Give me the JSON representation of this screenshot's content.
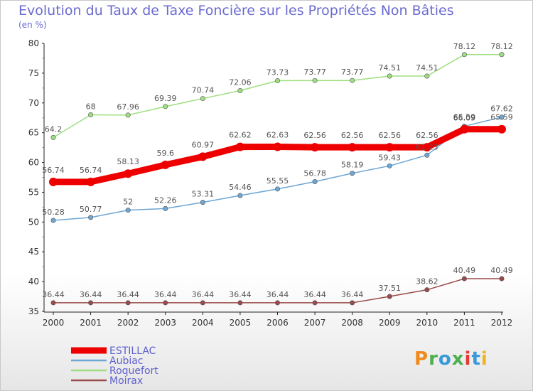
{
  "header": {
    "title": "Evolution du Taux de Taxe Foncière sur les Propriétés Non Bâties",
    "unit": "(en %)"
  },
  "logo": {
    "text": "Proxiti",
    "colors": [
      "#f08a1c",
      "#4cb04c",
      "#3a9ad9",
      "#4cb04c",
      "#e43a3a",
      "#3a9ad9",
      "#f0b41c"
    ]
  },
  "chart_data": {
    "type": "line",
    "title": "Evolution du Taux de Taxe Foncière sur les Propriétés Non Bâties",
    "ylabel": "(en %)",
    "x": [
      "2000",
      "2001",
      "2002",
      "2003",
      "2004",
      "2005",
      "2006",
      "2007",
      "2008",
      "2009",
      "2010",
      "2011",
      "2012"
    ],
    "ylim": [
      35,
      80
    ],
    "yticks": [
      "35",
      "40",
      "45",
      "50",
      "55",
      "60",
      "65",
      "70",
      "75",
      "80"
    ],
    "grid": false,
    "legend": "bottom-left",
    "series": [
      {
        "name": "ESTILLAC",
        "color": "#ee0000",
        "highlight": true,
        "values": [
          56.74,
          56.74,
          58.13,
          59.6,
          60.97,
          62.62,
          62.63,
          62.56,
          62.56,
          62.56,
          62.56,
          65.59,
          65.59
        ],
        "labels": [
          "56.74",
          "56.74",
          "58.13",
          "59.6",
          "60.97",
          "62.62",
          "62.63",
          "62.56",
          "62.56",
          "62.56",
          "62.56",
          "65.59",
          "65.59"
        ]
      },
      {
        "name": "Aubiac",
        "color": "#6ea6d4",
        "values": [
          50.28,
          50.77,
          52,
          52.26,
          53.31,
          54.46,
          55.55,
          56.78,
          58.19,
          59.43,
          61.23,
          66.09,
          67.62
        ],
        "labels": [
          "50.28",
          "50.77",
          "52",
          "52.26",
          "53.31",
          "54.46",
          "55.55",
          "56.78",
          "58.19",
          "59.43",
          "61.23",
          "66.09",
          "67.62"
        ]
      },
      {
        "name": "Roquefort",
        "color": "#9fdf80",
        "values": [
          64.2,
          68,
          67.96,
          69.39,
          70.74,
          72.06,
          73.73,
          73.77,
          73.77,
          74.51,
          74.51,
          78.12,
          78.12
        ],
        "labels": [
          "64.2",
          "68",
          "67.96",
          "69.39",
          "70.74",
          "72.06",
          "73.73",
          "73.77",
          "73.77",
          "74.51",
          "74.51",
          "78.12",
          "78.12"
        ]
      },
      {
        "name": "Moirax",
        "color": "#9a4a4a",
        "values": [
          36.44,
          36.44,
          36.44,
          36.44,
          36.44,
          36.44,
          36.44,
          36.44,
          36.44,
          37.51,
          38.62,
          40.49,
          40.49
        ],
        "labels": [
          "36.44",
          "36.44",
          "36.44",
          "36.44",
          "36.44",
          "36.44",
          "36.44",
          "36.44",
          "36.44",
          "37.51",
          "38.62",
          "40.49",
          "40.49"
        ]
      }
    ]
  }
}
